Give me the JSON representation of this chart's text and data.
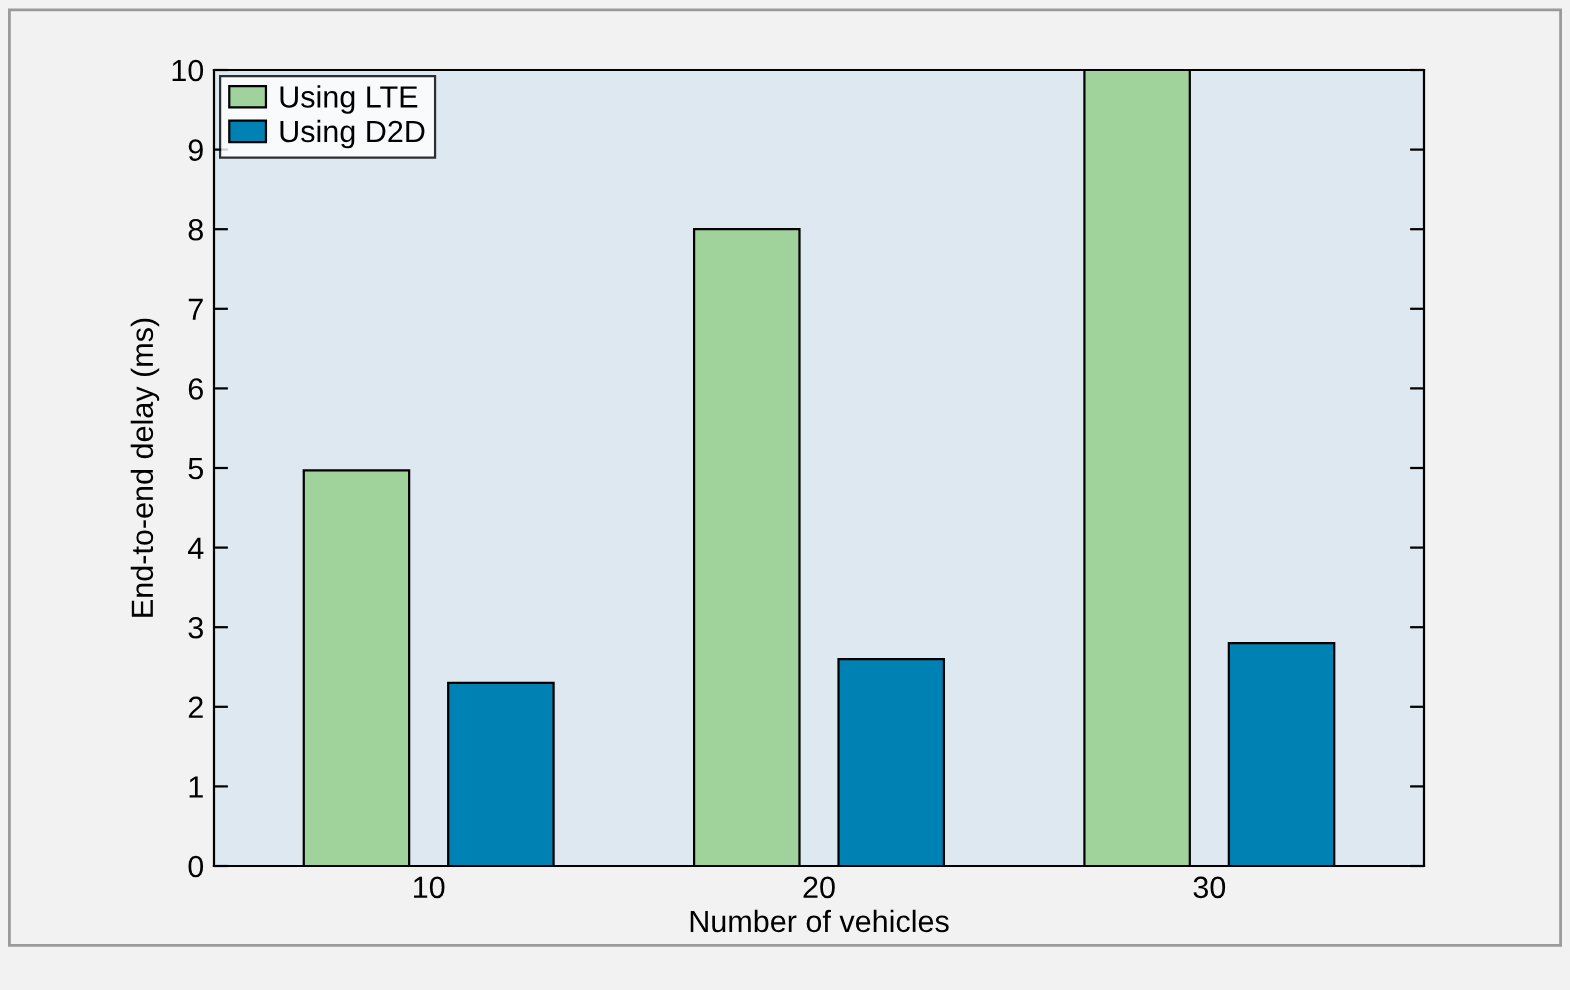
{
  "chart_data": {
    "type": "bar",
    "xlabel": "Number of vehicles",
    "ylabel": "End-to-end delay (ms)",
    "categories": [
      "10",
      "20",
      "30"
    ],
    "series": [
      {
        "name": "Using LTE",
        "color": "#a0d39b",
        "values": [
          4.97,
          8,
          10
        ]
      },
      {
        "name": "Using D2D",
        "color": "#0081b4",
        "values": [
          2.3,
          2.6,
          2.8
        ]
      }
    ],
    "ylim": [
      0,
      10
    ],
    "yticks": [
      0,
      1,
      2,
      3,
      4,
      5,
      6,
      7,
      8,
      9,
      10
    ],
    "grid": false,
    "legend": "top left"
  }
}
